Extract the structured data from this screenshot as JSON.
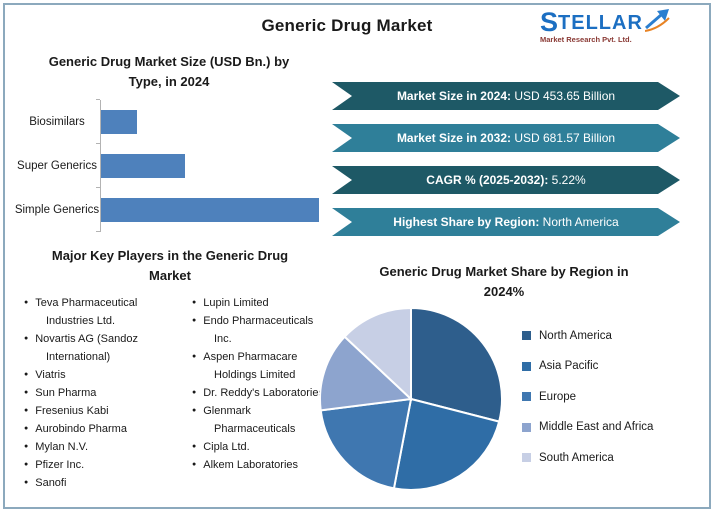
{
  "header": {
    "title": "Generic Drug Market",
    "logo": {
      "brand": "STELLAR",
      "tagline": "Market Research Pvt. Ltd."
    }
  },
  "banners": [
    {
      "label": "Market Size in 2024:",
      "value": " USD 453.65 Billion",
      "color": "#1e5966"
    },
    {
      "label": "Market Size in 2032:",
      "value": " USD 681.57 Billion",
      "color": "#2f7f99"
    },
    {
      "label": "CAGR % (2025-2032):",
      "value": " 5.22%",
      "color": "#1e5966"
    },
    {
      "label": "Highest Share by Region:",
      "value": " North America",
      "color": "#2f7f99"
    }
  ],
  "key_players": {
    "title": "Major Key Players in the Generic Drug Market",
    "column1": [
      "Teva Pharmaceutical Industries Ltd.",
      "Novartis AG (Sandoz International)",
      "Viatris",
      "Sun Pharma",
      "Fresenius Kabi",
      "Aurobindo Pharma",
      "Mylan N.V.",
      "Pfizer Inc.",
      "Sanofi"
    ],
    "column2": [
      "Lupin Limited",
      "Endo Pharmaceuticals Inc.",
      "Aspen Pharmacare Holdings Limited",
      "Dr. Reddy's Laboratories",
      "Glenmark Pharmaceuticals",
      "Cipla Ltd.",
      "Alkem Laboratories"
    ]
  },
  "chart_data": [
    {
      "type": "bar",
      "orientation": "horizontal",
      "title": "Generic Drug Market Size (USD Bn.) by Type, in 2024",
      "categories": [
        "Biosimilars",
        "Super Generics",
        "Simple Generics"
      ],
      "values": [
        48,
        113,
        293
      ],
      "values_estimated": true,
      "xlim": [
        0,
        300
      ],
      "bar_color": "#4e81bc",
      "grid": false,
      "axis_labels_shown": false
    },
    {
      "type": "pie",
      "title": "Generic Drug Market Share by Region in 2024%",
      "labels": [
        "North America",
        "Asia Pacific",
        "Europe",
        "Middle East and Africa",
        "South America"
      ],
      "values": [
        29,
        24,
        20,
        14,
        13
      ],
      "values_estimated": true,
      "colors": [
        "#2e5e8c",
        "#2f6da6",
        "#3f77b0",
        "#8da4ce",
        "#c7cfe5"
      ],
      "start_angle_deg": 0,
      "direction": "clockwise",
      "legend_position": "right"
    }
  ]
}
